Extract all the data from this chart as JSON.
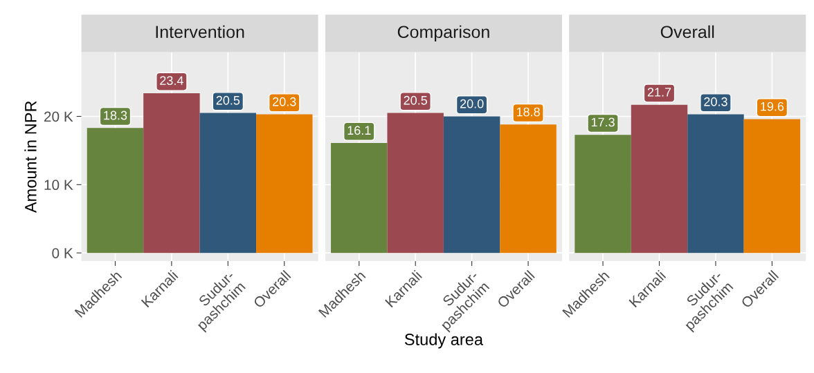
{
  "chart_data": [
    {
      "type": "bar",
      "title": "Intervention",
      "ylabel": "Amount in NPR",
      "categories": [
        "Madhesh",
        "Karnali",
        "Sudur-\npashchim",
        "Overall"
      ],
      "values": [
        18.3,
        23.4,
        20.5,
        20.3
      ],
      "value_labels": [
        "18.3",
        "23.4",
        "20.5",
        "20.3"
      ],
      "colors": [
        "#67843f",
        "#9b4850",
        "#30587a",
        "#e67e00"
      ],
      "ylim": [
        -1.2,
        29.4
      ],
      "yticks": [
        {
          "value": 0,
          "label": "0 K"
        },
        {
          "value": 10,
          "label": "10 K"
        },
        {
          "value": 20,
          "label": "20 K"
        }
      ],
      "grid": true
    },
    {
      "type": "bar",
      "title": "Comparison",
      "xlabel": "Study area",
      "categories": [
        "Madhesh",
        "Karnali",
        "Sudur-\npashchim",
        "Overall"
      ],
      "values": [
        16.1,
        20.5,
        20.0,
        18.8
      ],
      "value_labels": [
        "16.1",
        "20.5",
        "20.0",
        "18.8"
      ],
      "colors": [
        "#67843f",
        "#9b4850",
        "#30587a",
        "#e67e00"
      ],
      "ylim": [
        -1.2,
        29.4
      ],
      "yticks": [
        {
          "value": 0,
          "label": null
        },
        {
          "value": 10,
          "label": null
        },
        {
          "value": 20,
          "label": null
        }
      ],
      "grid": true,
      "tick_labels": "x"
    },
    {
      "type": "bar",
      "title": "Overall",
      "categories": [
        "Madhesh",
        "Karnali",
        "Sudur-\npashchim",
        "Overall"
      ],
      "values": [
        17.3,
        21.7,
        20.3,
        19.6
      ],
      "value_labels": [
        "17.3",
        "21.7",
        "20.3",
        "19.6"
      ],
      "colors": [
        "#67843f",
        "#9b4850",
        "#30587a",
        "#e67e00"
      ],
      "ylim": [
        -1.2,
        29.4
      ],
      "yticks": [
        {
          "value": 0,
          "label": null
        },
        {
          "value": 10,
          "label": null
        },
        {
          "value": 20,
          "label": null
        }
      ],
      "grid": true,
      "tick_labels": "x"
    }
  ]
}
